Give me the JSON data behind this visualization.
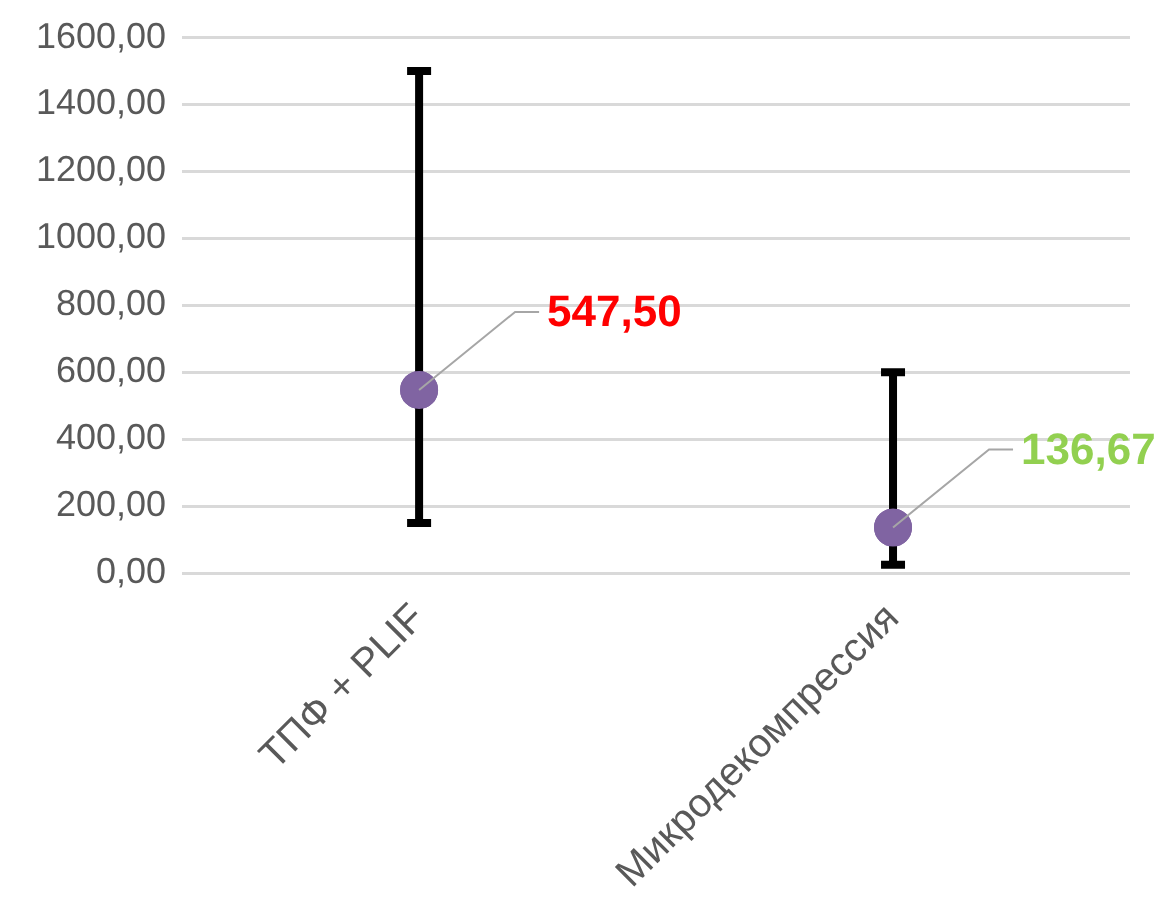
{
  "chart_data": {
    "type": "scatter",
    "categories": [
      "ТПФ + PLIF",
      "Микродекомпрессия"
    ],
    "values": [
      547.5,
      136.67
    ],
    "color": "#8064a2",
    "errors": [
      [
        150,
        1500
      ],
      [
        25,
        600
      ]
    ],
    "value_labels": [
      "547,50",
      "136,67"
    ],
    "ylim": [
      0,
      1600
    ],
    "yticks": [
      {
        "value": 0,
        "label": "0,00"
      },
      {
        "value": 200,
        "label": "200,00"
      },
      {
        "value": 400,
        "label": "400,00"
      },
      {
        "value": 600,
        "label": "600,00"
      },
      {
        "value": 800,
        "label": "800,00"
      },
      {
        "value": 1000,
        "label": "1000,00"
      },
      {
        "value": 1200,
        "label": "1200,00"
      },
      {
        "value": 1400,
        "label": "1400,00"
      },
      {
        "value": 1600,
        "label": "1600,00"
      }
    ],
    "grid": "y",
    "legend": false,
    "marker": "circle"
  }
}
